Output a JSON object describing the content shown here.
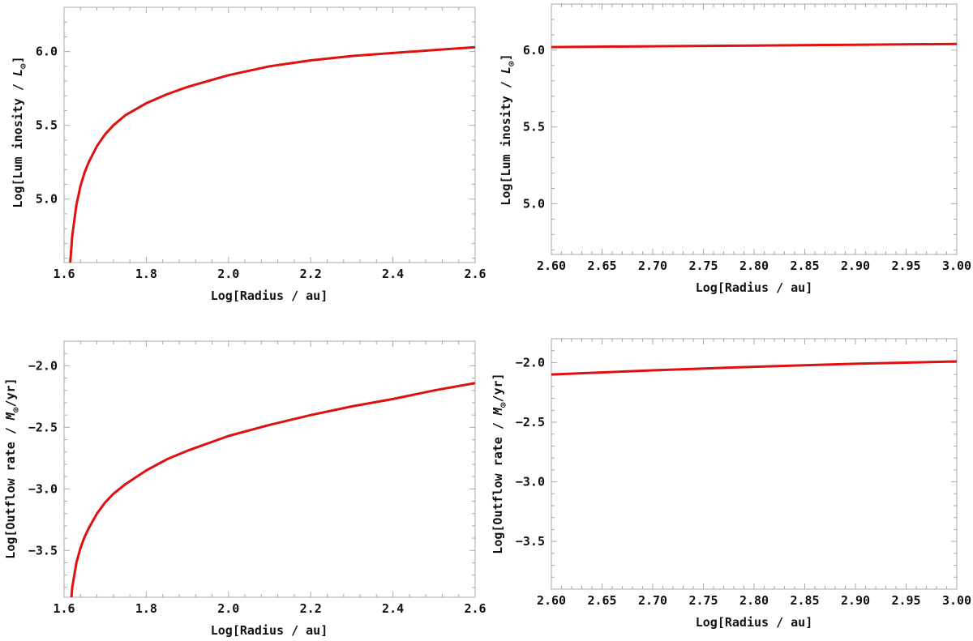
{
  "style": {
    "curve_color": "#e01010",
    "frame_color": "#aaaaaa",
    "text_color": "#111111",
    "background": "#ffffff"
  },
  "chart_data": [
    {
      "type": "line",
      "id": "luminosity-inner",
      "xlabel": "Log[Radius / au]",
      "ylabel": "Log[Lum inosity / L",
      "ylabel_subscript": "⊙",
      "ylabel_suffix": "]",
      "xlim": [
        1.6,
        2.6
      ],
      "ylim": [
        4.57,
        6.3
      ],
      "xticks": [
        1.6,
        1.8,
        2.0,
        2.2,
        2.4,
        2.6
      ],
      "xtick_labels": [
        "1.6",
        "1.8",
        "2.0",
        "2.2",
        "2.4",
        "2.6"
      ],
      "yticks": [
        5.0,
        5.5,
        6.0
      ],
      "ytick_labels": [
        "5.0",
        "5.5",
        "6.0"
      ],
      "grid": false,
      "series": [
        {
          "x": [
            1.615,
            1.62,
            1.63,
            1.64,
            1.65,
            1.66,
            1.68,
            1.7,
            1.72,
            1.75,
            1.8,
            1.85,
            1.9,
            1.95,
            2.0,
            2.05,
            2.1,
            2.2,
            2.3,
            2.4,
            2.5,
            2.6
          ],
          "y": [
            4.57,
            4.75,
            4.96,
            5.09,
            5.18,
            5.25,
            5.36,
            5.44,
            5.5,
            5.57,
            5.65,
            5.71,
            5.76,
            5.8,
            5.84,
            5.87,
            5.9,
            5.94,
            5.97,
            5.99,
            6.01,
            6.03
          ]
        }
      ]
    },
    {
      "type": "line",
      "id": "luminosity-outer",
      "xlabel": "Log[Radius / au]",
      "ylabel": "Log[Lum inosity / L",
      "ylabel_subscript": "⊙",
      "ylabel_suffix": "]",
      "xlim": [
        2.6,
        3.0
      ],
      "ylim": [
        4.67,
        6.3
      ],
      "xticks": [
        2.6,
        2.65,
        2.7,
        2.75,
        2.8,
        2.85,
        2.9,
        2.95,
        3.0
      ],
      "xtick_labels": [
        "2.60",
        "2.65",
        "2.70",
        "2.75",
        "2.80",
        "2.85",
        "2.90",
        "2.95",
        "3.00"
      ],
      "yticks": [
        5.0,
        5.5,
        6.0
      ],
      "ytick_labels": [
        "5.0",
        "5.5",
        "6.0"
      ],
      "grid": false,
      "series": [
        {
          "x": [
            2.6,
            2.7,
            2.8,
            2.9,
            3.0
          ],
          "y": [
            6.02,
            6.025,
            6.03,
            6.035,
            6.04
          ]
        }
      ]
    },
    {
      "type": "line",
      "id": "outflow-inner",
      "xlabel": "Log[Radius / au]",
      "ylabel": "Log[Outflow rate / M",
      "ylabel_subscript": "⊙",
      "ylabel_suffix": "/yr]",
      "xlim": [
        1.6,
        2.6
      ],
      "ylim": [
        -3.88,
        -1.8
      ],
      "xticks": [
        1.6,
        1.8,
        2.0,
        2.2,
        2.4,
        2.6
      ],
      "xtick_labels": [
        "1.6",
        "1.8",
        "2.0",
        "2.2",
        "2.4",
        "2.6"
      ],
      "yticks": [
        -3.5,
        -3.0,
        -2.5,
        -2.0
      ],
      "ytick_labels": [
        "−3.5",
        "−3.0",
        "−2.5",
        "−2.0"
      ],
      "grid": false,
      "series": [
        {
          "x": [
            1.618,
            1.62,
            1.63,
            1.64,
            1.65,
            1.66,
            1.68,
            1.7,
            1.72,
            1.75,
            1.8,
            1.85,
            1.9,
            1.95,
            2.0,
            2.1,
            2.2,
            2.3,
            2.4,
            2.5,
            2.6
          ],
          "y": [
            -3.88,
            -3.8,
            -3.6,
            -3.48,
            -3.39,
            -3.32,
            -3.2,
            -3.11,
            -3.04,
            -2.96,
            -2.85,
            -2.76,
            -2.69,
            -2.63,
            -2.57,
            -2.48,
            -2.4,
            -2.33,
            -2.27,
            -2.2,
            -2.14
          ]
        }
      ]
    },
    {
      "type": "line",
      "id": "outflow-outer",
      "xlabel": "Log[Radius / au]",
      "ylabel": "Log[Outflow rate / M",
      "ylabel_subscript": "⊙",
      "ylabel_suffix": "/yr]",
      "xlim": [
        2.6,
        3.0
      ],
      "ylim": [
        -3.9,
        -1.8
      ],
      "xticks": [
        2.6,
        2.65,
        2.7,
        2.75,
        2.8,
        2.85,
        2.9,
        2.95,
        3.0
      ],
      "xtick_labels": [
        "2.60",
        "2.65",
        "2.70",
        "2.75",
        "2.80",
        "2.85",
        "2.90",
        "2.95",
        "3.00"
      ],
      "yticks": [
        -3.5,
        -3.0,
        -2.5,
        -2.0
      ],
      "ytick_labels": [
        "−3.5",
        "−3.0",
        "−2.5",
        "−2.0"
      ],
      "grid": false,
      "series": [
        {
          "x": [
            2.6,
            2.7,
            2.8,
            2.9,
            3.0
          ],
          "y": [
            -2.1,
            -2.065,
            -2.035,
            -2.01,
            -1.99
          ]
        }
      ]
    }
  ]
}
